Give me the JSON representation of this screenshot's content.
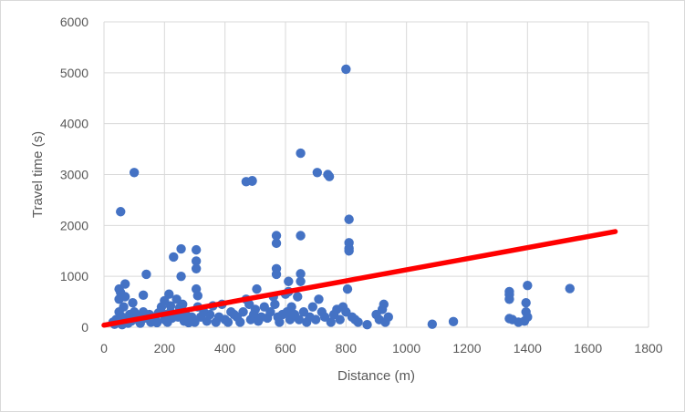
{
  "chart_data": {
    "type": "scatter",
    "xlabel": "Distance (m)",
    "ylabel": "Travel time (s)",
    "xlim": [
      0,
      1800
    ],
    "ylim": [
      0,
      6000
    ],
    "x_ticks": [
      "0",
      "200",
      "400",
      "600",
      "800",
      "1000",
      "1200",
      "1400",
      "1600",
      "1800"
    ],
    "y_ticks": [
      "0",
      "1000",
      "2000",
      "3000",
      "4000",
      "5000",
      "6000"
    ],
    "grid": true,
    "legend": "none",
    "series": [
      {
        "kind": "points",
        "color": "#4472c4",
        "points": [
          [
            30,
            100
          ],
          [
            35,
            60
          ],
          [
            40,
            150
          ],
          [
            45,
            120
          ],
          [
            50,
            300
          ],
          [
            50,
            550
          ],
          [
            50,
            750
          ],
          [
            55,
            680
          ],
          [
            60,
            50
          ],
          [
            60,
            200
          ],
          [
            65,
            400
          ],
          [
            70,
            850
          ],
          [
            70,
            600
          ],
          [
            75,
            180
          ],
          [
            80,
            80
          ],
          [
            85,
            250
          ],
          [
            90,
            120
          ],
          [
            95,
            480
          ],
          [
            100,
            300
          ],
          [
            100,
            3040
          ],
          [
            55,
            2270
          ],
          [
            110,
            150
          ],
          [
            115,
            220
          ],
          [
            120,
            80
          ],
          [
            130,
            300
          ],
          [
            130,
            630
          ],
          [
            140,
            1040
          ],
          [
            140,
            180
          ],
          [
            150,
            250
          ],
          [
            155,
            100
          ],
          [
            160,
            200
          ],
          [
            170,
            150
          ],
          [
            175,
            90
          ],
          [
            180,
            280
          ],
          [
            190,
            400
          ],
          [
            200,
            150
          ],
          [
            200,
            520
          ],
          [
            205,
            250
          ],
          [
            210,
            100
          ],
          [
            215,
            650
          ],
          [
            220,
            300
          ],
          [
            220,
            420
          ],
          [
            225,
            180
          ],
          [
            230,
            1380
          ],
          [
            240,
            550
          ],
          [
            245,
            200
          ],
          [
            250,
            380
          ],
          [
            255,
            1000
          ],
          [
            255,
            1540
          ],
          [
            260,
            450
          ],
          [
            265,
            120
          ],
          [
            270,
            250
          ],
          [
            280,
            90
          ],
          [
            290,
            200
          ],
          [
            300,
            100
          ],
          [
            305,
            750
          ],
          [
            305,
            1150
          ],
          [
            305,
            1300
          ],
          [
            305,
            1520
          ],
          [
            310,
            400
          ],
          [
            310,
            620
          ],
          [
            320,
            200
          ],
          [
            330,
            300
          ],
          [
            340,
            120
          ],
          [
            350,
            250
          ],
          [
            360,
            420
          ],
          [
            370,
            100
          ],
          [
            380,
            200
          ],
          [
            390,
            450
          ],
          [
            400,
            150
          ],
          [
            410,
            100
          ],
          [
            420,
            300
          ],
          [
            430,
            250
          ],
          [
            440,
            200
          ],
          [
            450,
            100
          ],
          [
            460,
            300
          ],
          [
            470,
            550
          ],
          [
            470,
            2860
          ],
          [
            480,
            450
          ],
          [
            485,
            150
          ],
          [
            490,
            2870
          ],
          [
            490,
            2880
          ],
          [
            495,
            250
          ],
          [
            500,
            350
          ],
          [
            505,
            750
          ],
          [
            510,
            120
          ],
          [
            520,
            200
          ],
          [
            530,
            400
          ],
          [
            540,
            180
          ],
          [
            550,
            300
          ],
          [
            560,
            600
          ],
          [
            565,
            450
          ],
          [
            570,
            1040
          ],
          [
            570,
            1150
          ],
          [
            570,
            1650
          ],
          [
            570,
            1800
          ],
          [
            575,
            200
          ],
          [
            580,
            100
          ],
          [
            590,
            250
          ],
          [
            600,
            650
          ],
          [
            605,
            300
          ],
          [
            610,
            700
          ],
          [
            610,
            900
          ],
          [
            615,
            150
          ],
          [
            620,
            400
          ],
          [
            630,
            250
          ],
          [
            640,
            600
          ],
          [
            645,
            150
          ],
          [
            650,
            900
          ],
          [
            650,
            1050
          ],
          [
            650,
            1800
          ],
          [
            650,
            3420
          ],
          [
            660,
            300
          ],
          [
            670,
            100
          ],
          [
            680,
            200
          ],
          [
            690,
            400
          ],
          [
            700,
            150
          ],
          [
            705,
            3040
          ],
          [
            710,
            550
          ],
          [
            720,
            300
          ],
          [
            730,
            200
          ],
          [
            740,
            3000
          ],
          [
            745,
            2960
          ],
          [
            750,
            100
          ],
          [
            760,
            250
          ],
          [
            770,
            350
          ],
          [
            780,
            150
          ],
          [
            790,
            400
          ],
          [
            800,
            300
          ],
          [
            800,
            5070
          ],
          [
            805,
            750
          ],
          [
            810,
            1500
          ],
          [
            810,
            1550
          ],
          [
            810,
            1660
          ],
          [
            810,
            2120
          ],
          [
            820,
            200
          ],
          [
            830,
            150
          ],
          [
            840,
            100
          ],
          [
            870,
            50
          ],
          [
            900,
            250
          ],
          [
            910,
            150
          ],
          [
            920,
            350
          ],
          [
            925,
            450
          ],
          [
            930,
            100
          ],
          [
            940,
            200
          ],
          [
            1085,
            60
          ],
          [
            1155,
            110
          ],
          [
            1340,
            170
          ],
          [
            1340,
            550
          ],
          [
            1340,
            640
          ],
          [
            1340,
            700
          ],
          [
            1350,
            150
          ],
          [
            1370,
            100
          ],
          [
            1390,
            120
          ],
          [
            1395,
            300
          ],
          [
            1395,
            480
          ],
          [
            1400,
            200
          ],
          [
            1400,
            820
          ],
          [
            1540,
            760
          ]
        ]
      },
      {
        "kind": "trendline",
        "color": "#ff0000",
        "from": [
          0,
          40
        ],
        "to": [
          1690,
          1880
        ]
      }
    ]
  }
}
